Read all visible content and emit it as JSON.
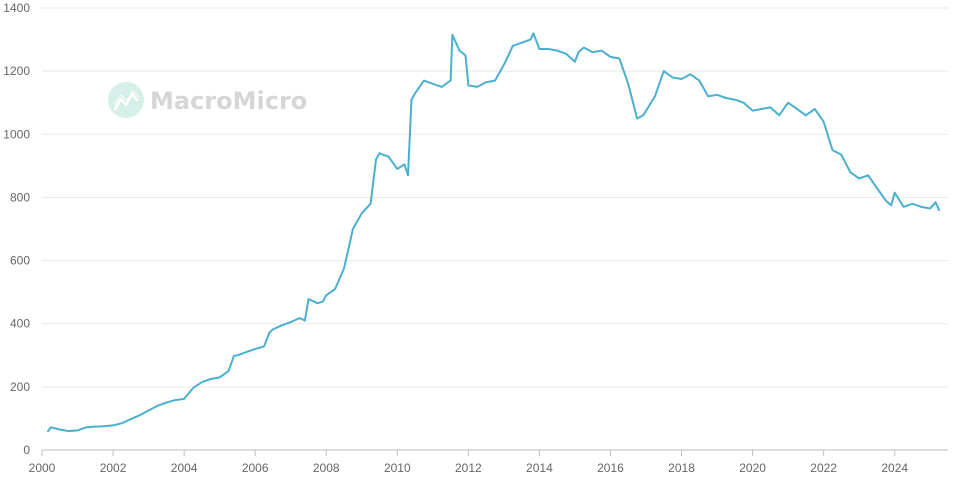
{
  "watermark": {
    "text": "MacroMicro",
    "icon": "macromicro-logo-icon",
    "color": "#d6efe9"
  },
  "colors": {
    "line": "#4bb0cf",
    "grid": "#e9e9e9",
    "axis": "#bfbfbf",
    "tick_text": "#666666"
  },
  "chart_data": {
    "type": "line",
    "title": "",
    "xlabel": "",
    "ylabel": "",
    "xlim": [
      2000.0,
      2025.5
    ],
    "ylim": [
      0,
      1400
    ],
    "x_ticks": [
      2000,
      2002,
      2004,
      2006,
      2008,
      2010,
      2012,
      2014,
      2016,
      2018,
      2020,
      2022,
      2024
    ],
    "x_tick_labels": [
      "2000",
      "2002",
      "2004",
      "2006",
      "2008",
      "2010",
      "2012",
      "2014",
      "2016",
      "2018",
      "2020",
      "2022",
      "2024"
    ],
    "y_ticks": [
      0,
      200,
      400,
      600,
      800,
      1000,
      1200,
      1400
    ],
    "y_tick_labels": [
      "0",
      "200",
      "400",
      "600",
      "800",
      "1000",
      "1200",
      "1400"
    ],
    "grid": true,
    "legend": "none",
    "series": [
      {
        "color": "#4bb0cf",
        "x": [
          2000.17,
          2000.25,
          2000.5,
          2000.75,
          2001.0,
          2001.25,
          2001.5,
          2001.75,
          2002.0,
          2002.25,
          2002.5,
          2002.75,
          2003.0,
          2003.25,
          2003.5,
          2003.75,
          2004.0,
          2004.25,
          2004.5,
          2004.75,
          2005.0,
          2005.25,
          2005.4,
          2005.5,
          2005.75,
          2006.0,
          2006.25,
          2006.4,
          2006.5,
          2006.75,
          2007.0,
          2007.25,
          2007.4,
          2007.5,
          2007.75,
          2007.9,
          2008.0,
          2008.25,
          2008.5,
          2008.6,
          2008.75,
          2009.0,
          2009.25,
          2009.4,
          2009.5,
          2009.6,
          2009.75,
          2010.0,
          2010.2,
          2010.3,
          2010.4,
          2010.5,
          2010.75,
          2011.0,
          2011.25,
          2011.5,
          2011.55,
          2011.75,
          2011.92,
          2012.0,
          2012.25,
          2012.5,
          2012.75,
          2013.0,
          2013.25,
          2013.5,
          2013.75,
          2013.83,
          2014.0,
          2014.25,
          2014.5,
          2014.75,
          2015.0,
          2015.1,
          2015.25,
          2015.5,
          2015.75,
          2016.0,
          2016.25,
          2016.5,
          2016.75,
          2016.92,
          2017.25,
          2017.5,
          2017.75,
          2018.0,
          2018.25,
          2018.5,
          2018.75,
          2019.0,
          2019.25,
          2019.5,
          2019.75,
          2020.0,
          2020.25,
          2020.5,
          2020.75,
          2021.0,
          2021.25,
          2021.5,
          2021.75,
          2022.0,
          2022.25,
          2022.5,
          2022.75,
          2023.0,
          2023.25,
          2023.5,
          2023.75,
          2023.9,
          2024.0,
          2024.25,
          2024.5,
          2024.75,
          2025.0,
          2025.15,
          2025.25
        ],
        "y": [
          60,
          72,
          65,
          60,
          62,
          72,
          74,
          75,
          78,
          85,
          98,
          110,
          125,
          140,
          150,
          158,
          162,
          196,
          215,
          225,
          230,
          250,
          298,
          300,
          310,
          320,
          328,
          372,
          382,
          395,
          405,
          418,
          410,
          478,
          465,
          470,
          490,
          510,
          575,
          625,
          700,
          750,
          780,
          920,
          940,
          935,
          930,
          890,
          905,
          870,
          1110,
          1130,
          1170,
          1160,
          1150,
          1170,
          1315,
          1265,
          1250,
          1155,
          1150,
          1165,
          1170,
          1220,
          1280,
          1290,
          1300,
          1320,
          1270,
          1270,
          1265,
          1255,
          1230,
          1260,
          1275,
          1260,
          1265,
          1245,
          1240,
          1160,
          1050,
          1060,
          1120,
          1200,
          1180,
          1175,
          1190,
          1170,
          1120,
          1125,
          1115,
          1110,
          1100,
          1075,
          1080,
          1085,
          1060,
          1100,
          1080,
          1060,
          1080,
          1040,
          950,
          935,
          880,
          860,
          870,
          830,
          790,
          775,
          815,
          770,
          780,
          770,
          765,
          785,
          760
        ]
      }
    ]
  }
}
